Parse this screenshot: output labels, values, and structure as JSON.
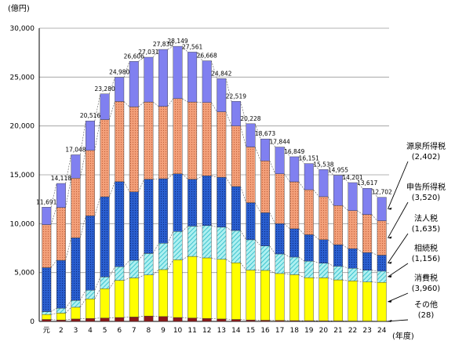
{
  "chart_data": {
    "type": "bar",
    "stacked": true,
    "unit_label": "(億円)",
    "x_unit_label": "(年度)",
    "categories": [
      "元",
      "2",
      "3",
      "4",
      "5",
      "6",
      "7",
      "8",
      "9",
      "10",
      "11",
      "12",
      "13",
      "14",
      "15",
      "16",
      "17",
      "18",
      "19",
      "20",
      "21",
      "22",
      "23",
      "24"
    ],
    "totals": [
      11691,
      14118,
      17048,
      20516,
      23280,
      24980,
      26606,
      27031,
      27830,
      28149,
      27561,
      26668,
      24842,
      22519,
      20228,
      18673,
      17844,
      16849,
      16151,
      15538,
      14955,
      14201,
      13617,
      12702
    ],
    "ylim": [
      0,
      30000
    ],
    "yticks": [
      0,
      5000,
      10000,
      15000,
      20000,
      25000,
      30000
    ],
    "ytick_labels": [
      "0",
      "5,000",
      "10,000",
      "15,000",
      "20,000",
      "25,000",
      "30,000"
    ],
    "grid": true,
    "series": [
      {
        "name": "その他",
        "value_label": "(28)",
        "color": "#8b1a1a",
        "values": [
          200,
          150,
          250,
          300,
          350,
          400,
          450,
          550,
          500,
          400,
          350,
          300,
          250,
          200,
          150,
          120,
          100,
          80,
          70,
          60,
          50,
          40,
          35,
          28
        ]
      },
      {
        "name": "消費税",
        "value_label": "(3,960)",
        "color": "#ffff00",
        "values": [
          500,
          700,
          1200,
          2000,
          3000,
          3800,
          4000,
          4200,
          4800,
          5900,
          6300,
          6200,
          6100,
          5800,
          5100,
          5100,
          4800,
          4700,
          4400,
          4400,
          4200,
          4100,
          4000,
          3960
        ]
      },
      {
        "name": "相続税",
        "value_label": "(1,156)",
        "color": "#33cccc",
        "values": [
          300,
          500,
          700,
          900,
          1200,
          1400,
          1800,
          2200,
          2700,
          2900,
          3100,
          3300,
          3300,
          3300,
          3100,
          2500,
          2000,
          1800,
          1700,
          1500,
          1400,
          1300,
          1200,
          1156
        ]
      },
      {
        "name": "法人税",
        "value_label": "(1,635)",
        "color": "#336699",
        "values": [
          4500,
          4900,
          6400,
          7600,
          8200,
          8700,
          7000,
          7600,
          6600,
          5900,
          4800,
          5100,
          5100,
          4500,
          3800,
          3400,
          3100,
          2900,
          2700,
          2400,
          2200,
          2000,
          1800,
          1635
        ]
      },
      {
        "name": "申告所得税",
        "value_label": "(3,520)",
        "color": "#ff9966",
        "values": [
          4400,
          5400,
          6100,
          6700,
          7900,
          8200,
          8700,
          7900,
          7400,
          7700,
          7900,
          7500,
          6700,
          6200,
          5700,
          5300,
          5100,
          4800,
          4600,
          4400,
          4000,
          3900,
          3900,
          3520
        ]
      },
      {
        "name": "源泉所得税",
        "value_label": "(2,402)",
        "color": "#8080f0",
        "values": [
          1791,
          2468,
          2398,
          3016,
          2630,
          2480,
          4656,
          4581,
          5830,
          5349,
          5111,
          4268,
          3392,
          2519,
          2378,
          2253,
          2744,
          2569,
          2681,
          2778,
          3105,
          2861,
          2682,
          2402
        ]
      }
    ]
  }
}
